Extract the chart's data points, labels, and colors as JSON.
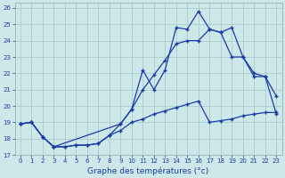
{
  "background_color": "#cce8e8",
  "grid_color": "#aacccc",
  "line_color": "#1a3aaa",
  "xlabel": "Graphe des températures (°c)",
  "xlim": [
    -0.5,
    23.5
  ],
  "ylim": [
    17,
    26.3
  ],
  "yticks": [
    17,
    18,
    19,
    20,
    21,
    22,
    23,
    24,
    25,
    26
  ],
  "xticks": [
    0,
    1,
    2,
    3,
    4,
    5,
    6,
    7,
    8,
    9,
    10,
    11,
    12,
    13,
    14,
    15,
    16,
    17,
    18,
    19,
    20,
    21,
    22,
    23
  ],
  "s1_x": [
    0,
    1,
    2,
    3,
    4,
    5,
    6,
    7,
    8,
    9,
    10,
    11,
    12,
    13,
    14,
    15,
    16,
    17,
    18,
    19,
    20,
    21,
    22,
    23
  ],
  "s1_y": [
    18.9,
    19.0,
    18.1,
    17.5,
    17.5,
    17.6,
    17.6,
    17.7,
    18.2,
    18.5,
    19.0,
    19.2,
    19.5,
    19.7,
    19.9,
    20.1,
    20.3,
    19.0,
    19.1,
    19.2,
    19.4,
    19.5,
    19.6,
    19.6
  ],
  "s2_x": [
    0,
    1,
    2,
    3,
    9,
    10,
    11,
    12,
    13,
    14,
    15,
    16,
    17,
    18,
    19,
    20,
    21,
    22,
    23
  ],
  "s2_y": [
    18.9,
    19.0,
    18.1,
    17.5,
    18.9,
    19.8,
    21.0,
    21.9,
    22.8,
    23.8,
    24.0,
    24.0,
    24.7,
    24.5,
    23.0,
    23.0,
    21.8,
    21.8,
    20.6
  ],
  "s3_x": [
    0,
    1,
    2,
    3,
    4,
    5,
    6,
    7,
    8,
    9,
    10,
    11,
    12,
    13,
    14,
    15,
    16,
    17,
    18,
    19,
    20,
    21,
    22,
    23
  ],
  "s3_y": [
    18.9,
    19.0,
    18.1,
    17.5,
    17.5,
    17.6,
    17.6,
    17.7,
    18.2,
    18.9,
    19.8,
    22.2,
    21.0,
    22.2,
    24.8,
    24.7,
    25.8,
    24.7,
    24.5,
    24.8,
    23.0,
    22.0,
    21.8,
    19.5
  ]
}
